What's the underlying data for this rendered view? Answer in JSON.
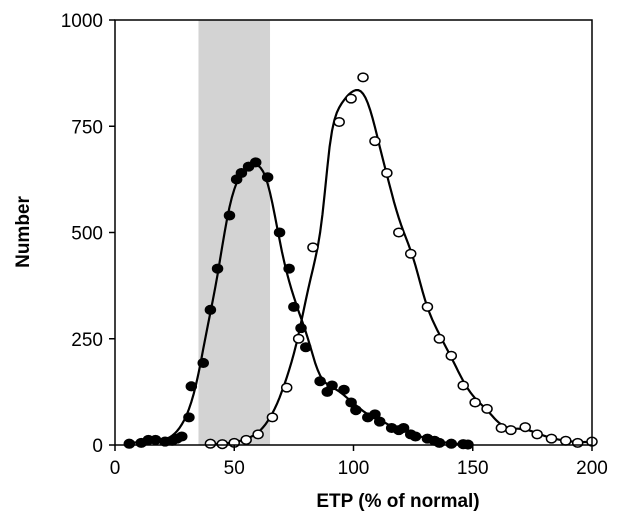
{
  "chart_data": {
    "type": "scatter",
    "xlabel": "ETP (% of normal)",
    "ylabel": "Number",
    "xlim": [
      0,
      200
    ],
    "ylim": [
      0,
      1000
    ],
    "x_ticks": [
      "0",
      "50",
      "100",
      "150",
      "200"
    ],
    "y_ticks": [
      "0",
      "250",
      "500",
      "750",
      "1000"
    ],
    "grid": false,
    "legend": "none",
    "shaded_band": {
      "x_range": [
        35,
        65
      ],
      "color": "#d3d3d3"
    },
    "series": [
      {
        "marker": "filled-circle",
        "color": "#000000",
        "points": [
          [
            6,
            3
          ],
          [
            11,
            5
          ],
          [
            14,
            12
          ],
          [
            17,
            12
          ],
          [
            21,
            8
          ],
          [
            24,
            10
          ],
          [
            26,
            15
          ],
          [
            28,
            20
          ],
          [
            31,
            65
          ],
          [
            32,
            138
          ],
          [
            37,
            193
          ],
          [
            40,
            318
          ],
          [
            43,
            415
          ],
          [
            48,
            540
          ],
          [
            51,
            625
          ],
          [
            53,
            640
          ],
          [
            56,
            655
          ],
          [
            59,
            665
          ],
          [
            64,
            630
          ],
          [
            69,
            500
          ],
          [
            73,
            415
          ],
          [
            75,
            325
          ],
          [
            78,
            275
          ],
          [
            80,
            230
          ],
          [
            86,
            150
          ],
          [
            89,
            125
          ],
          [
            91,
            140
          ],
          [
            96,
            130
          ],
          [
            99,
            100
          ],
          [
            101,
            82
          ],
          [
            106,
            65
          ],
          [
            109,
            72
          ],
          [
            111,
            55
          ],
          [
            116,
            40
          ],
          [
            119,
            35
          ],
          [
            121,
            40
          ],
          [
            124,
            25
          ],
          [
            126,
            20
          ],
          [
            131,
            15
          ],
          [
            134,
            10
          ],
          [
            136,
            5
          ],
          [
            141,
            3
          ],
          [
            146,
            2
          ],
          [
            148,
            1
          ]
        ]
      },
      {
        "marker": "open-circle",
        "color": "#000000",
        "points": [
          [
            40,
            3
          ],
          [
            45,
            2
          ],
          [
            50,
            5
          ],
          [
            55,
            12
          ],
          [
            60,
            25
          ],
          [
            66,
            65
          ],
          [
            72,
            135
          ],
          [
            77,
            250
          ],
          [
            83,
            465
          ],
          [
            94,
            760
          ],
          [
            99,
            815
          ],
          [
            104,
            865
          ],
          [
            109,
            715
          ],
          [
            114,
            640
          ],
          [
            119,
            500
          ],
          [
            124,
            450
          ],
          [
            131,
            325
          ],
          [
            136,
            250
          ],
          [
            141,
            210
          ],
          [
            146,
            140
          ],
          [
            151,
            100
          ],
          [
            156,
            85
          ],
          [
            162,
            40
          ],
          [
            166,
            35
          ],
          [
            172,
            42
          ],
          [
            177,
            25
          ],
          [
            183,
            15
          ],
          [
            189,
            10
          ],
          [
            194,
            5
          ],
          [
            200,
            8
          ]
        ]
      }
    ],
    "fit_curves": [
      {
        "color": "#000000",
        "peak_x": 58,
        "peak_y": 660
      },
      {
        "color": "#000000",
        "peak_x": 101,
        "peak_y": 835
      }
    ]
  }
}
